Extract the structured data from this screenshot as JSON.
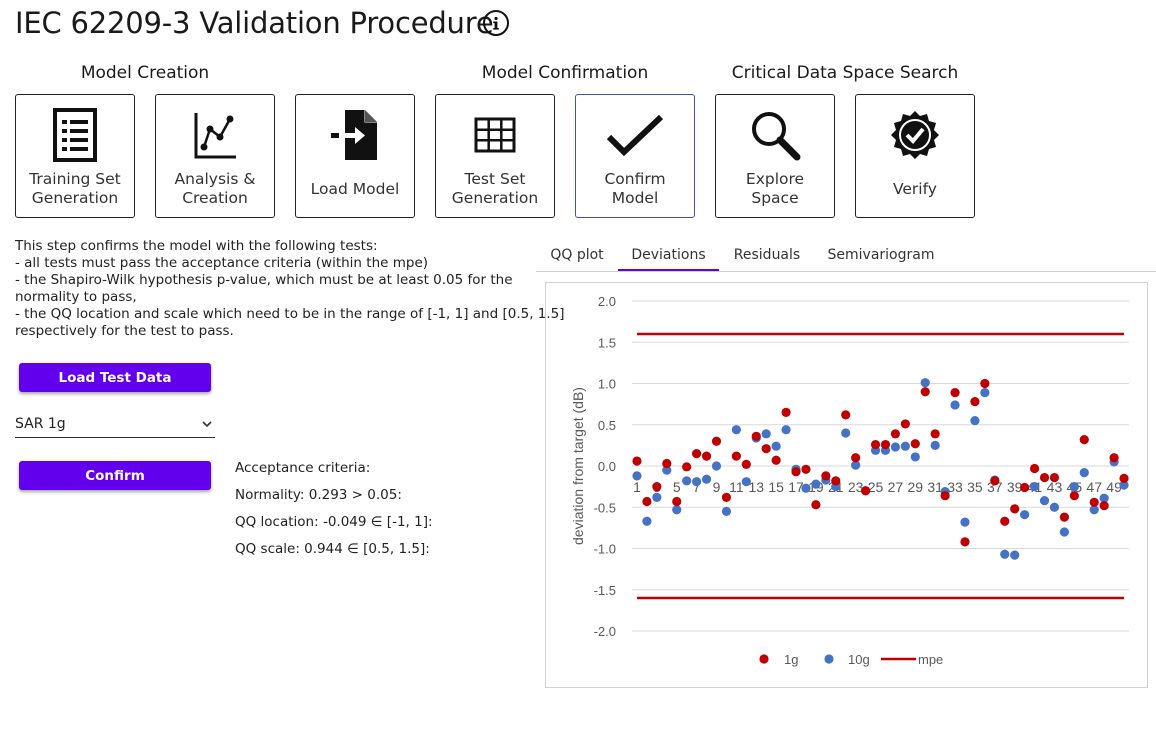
{
  "header": {
    "title": "IEC 62209-3 Validation Procedure",
    "info_icon": "info-icon"
  },
  "sections": {
    "model_creation": "Model Creation",
    "model_confirmation": "Model Confirmation",
    "critical_search": "Critical Data Space Search"
  },
  "tiles": [
    {
      "label1": "Training Set",
      "label2": "Generation",
      "icon": "list-document-icon"
    },
    {
      "label1": "Analysis &",
      "label2": "Creation",
      "icon": "line-chart-icon"
    },
    {
      "label1": "Load Model",
      "label2": "",
      "icon": "file-import-icon"
    },
    {
      "label1": "Test Set",
      "label2": "Generation",
      "icon": "grid-icon"
    },
    {
      "label1": "Confirm",
      "label2": "Model",
      "icon": "checkmark-icon",
      "active": true
    },
    {
      "label1": "Explore",
      "label2": "Space",
      "icon": "magnifier-icon"
    },
    {
      "label1": "Verify",
      "label2": "",
      "icon": "verified-badge-icon"
    }
  ],
  "description": {
    "line1": "This step confirms the model with the following tests:",
    "line2": "- all tests must pass the acceptance criteria (within the mpe)",
    "line3": "- the Shapiro-Wilk hypothesis p-value, which must be at least 0.05 for the",
    "line4": "normality to pass,",
    "line5": "- the QQ location and scale which need to be in the range of [-1, 1] and [0.5, 1.5]",
    "line6": "respectively for the test to pass."
  },
  "controls": {
    "load_button": "Load Test Data",
    "select_value": "SAR 1g",
    "confirm_button": "Confirm"
  },
  "criteria": {
    "heading": "Acceptance criteria:",
    "normality": "Normality: 0.293 > 0.05:",
    "qq_location": "QQ location: -0.049 ∈ [-1, 1]:",
    "qq_scale": "QQ scale: 0.944 ∈ [0.5, 1.5]:"
  },
  "tabs": [
    {
      "label": "QQ plot",
      "active": false
    },
    {
      "label": "Deviations",
      "active": true
    },
    {
      "label": "Residuals",
      "active": false
    },
    {
      "label": "Semivariogram",
      "active": false
    }
  ],
  "colors": {
    "accent": "#6200ee",
    "series_1g": "#c00000",
    "series_10g": "#4472c4",
    "mpe": "#c00000"
  },
  "chart_data": {
    "type": "scatter",
    "ylabel": "deviation from target (dB)",
    "ylim": [
      -2.0,
      2.0
    ],
    "yticks": [
      "2.0",
      "1.5",
      "1.0",
      "0.5",
      "0.0",
      "-0.5",
      "-1.0",
      "-1.5",
      "-2.0"
    ],
    "xticks": [
      "1",
      "3",
      "5",
      "7",
      "9",
      "11",
      "13",
      "15",
      "17",
      "19",
      "21",
      "23",
      "25",
      "27",
      "29",
      "31",
      "33",
      "35",
      "37",
      "39",
      "41",
      "43",
      "45",
      "47",
      "49"
    ],
    "grid": true,
    "legend_position": "bottom",
    "mpe": 1.6,
    "series": [
      {
        "name": "1g",
        "values": [
          0.06,
          -0.43,
          -0.25,
          0.03,
          -0.43,
          -0.01,
          0.15,
          0.12,
          0.3,
          -0.38,
          0.12,
          0.02,
          0.36,
          0.21,
          0.07,
          0.65,
          -0.07,
          -0.04,
          -0.47,
          -0.12,
          -0.18,
          0.62,
          0.1,
          -0.3,
          0.26,
          0.26,
          0.39,
          0.51,
          0.27,
          0.9,
          0.39,
          -0.36,
          0.89,
          -0.92,
          0.78,
          1.0,
          -0.18,
          -0.67,
          -0.52,
          -0.26,
          -0.03,
          -0.14,
          -0.14,
          -0.62,
          -0.36,
          0.32,
          -0.44,
          -0.48,
          0.1,
          -0.15
        ]
      },
      {
        "name": "10g",
        "values": [
          -0.12,
          -0.67,
          -0.38,
          -0.05,
          -0.53,
          -0.18,
          -0.19,
          -0.16,
          0.0,
          -0.55,
          0.44,
          -0.19,
          0.34,
          0.39,
          0.24,
          0.44,
          -0.04,
          -0.27,
          -0.22,
          -0.17,
          -0.25,
          0.4,
          0.01,
          -0.3,
          0.19,
          0.19,
          0.23,
          0.24,
          0.11,
          1.01,
          0.25,
          -0.31,
          0.74,
          -0.68,
          0.55,
          0.89,
          -0.17,
          -1.07,
          -1.08,
          -0.59,
          -0.25,
          -0.42,
          -0.5,
          -0.8,
          -0.25,
          -0.08,
          -0.53,
          -0.39,
          0.05,
          -0.23
        ]
      },
      {
        "name": "mpe",
        "values": [
          1.6,
          -1.6
        ]
      }
    ]
  }
}
